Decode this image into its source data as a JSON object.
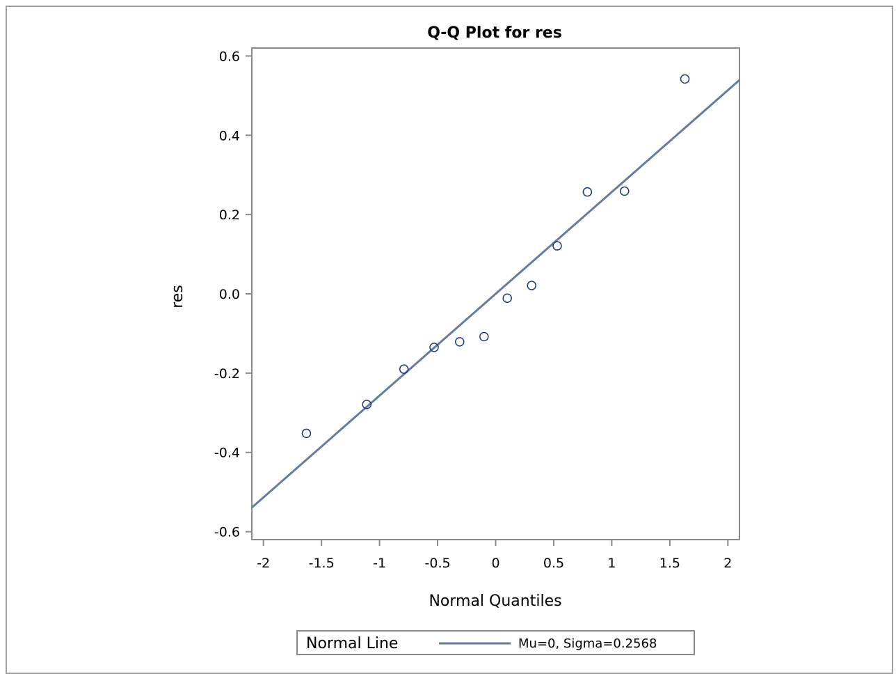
{
  "chart_data": {
    "type": "scatter",
    "title": "Q-Q Plot for res",
    "xlabel": "Normal Quantiles",
    "ylabel": "res",
    "xlim": [
      -2.1,
      2.1
    ],
    "ylim": [
      -0.62,
      0.62
    ],
    "x_ticks": [
      -2,
      -1.5,
      -1,
      -0.5,
      0,
      0.5,
      1,
      1.5,
      2
    ],
    "x_tick_labels": [
      "-2",
      "-1.5",
      "-1",
      "-0.5",
      "0",
      "0.5",
      "1",
      "1.5",
      "2"
    ],
    "y_ticks": [
      0.6,
      0.4,
      0.2,
      0.0,
      -0.2,
      -0.4,
      -0.6
    ],
    "y_tick_labels": [
      "0.6",
      "0.4",
      "0.2",
      "0.0",
      "-0.2",
      "-0.4",
      "-0.6"
    ],
    "grid": false,
    "points": {
      "x": [
        -1.63,
        -1.11,
        -0.79,
        -0.53,
        -0.31,
        -0.1,
        0.1,
        0.31,
        0.53,
        0.79,
        1.11,
        1.63
      ],
      "y": [
        -0.352,
        -0.279,
        -0.19,
        -0.135,
        -0.121,
        -0.108,
        -0.011,
        0.021,
        0.121,
        0.257,
        0.259,
        0.542
      ]
    },
    "reference_line": {
      "mu": 0,
      "sigma": 0.2568
    },
    "legend": {
      "position": "bottom",
      "title": "Normal Line",
      "entry": "Mu=0, Sigma=0.2568"
    },
    "colors": {
      "line": "#667ba0",
      "marker": "#1a3a86",
      "axis": "#8a8a8a"
    }
  }
}
